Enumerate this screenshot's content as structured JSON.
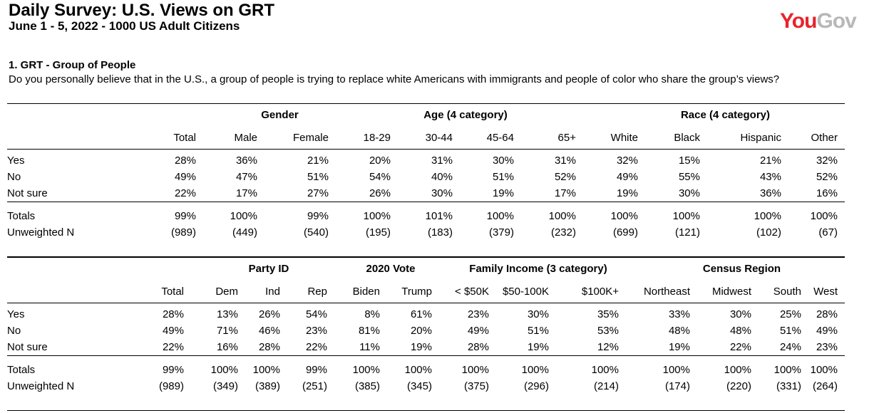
{
  "header": {
    "title": "Daily Survey: U.S. Views on GRT",
    "subtitle": "June 1 - 5, 2022 - 1000 US Adult Citizens",
    "logo_you": "You",
    "logo_gov": "Gov",
    "brand_color": "#e8242c"
  },
  "question": {
    "title": "1. GRT - Group of People",
    "text": "Do you personally believe that in the U.S., a group of people is trying to replace white Americans with immigrants and people of color who share the group’s views?"
  },
  "table1": {
    "groups": [
      {
        "label": "Gender"
      },
      {
        "label": "Age (4 category)"
      },
      {
        "label": "Race (4 category)"
      }
    ],
    "columns": [
      "Total",
      "Male",
      "Female",
      "18-29",
      "30-44",
      "45-64",
      "65+",
      "White",
      "Black",
      "Hispanic",
      "Other"
    ],
    "rows": [
      {
        "label": "Yes",
        "values": [
          "28%",
          "36%",
          "21%",
          "20%",
          "31%",
          "30%",
          "31%",
          "32%",
          "15%",
          "21%",
          "32%"
        ]
      },
      {
        "label": "No",
        "values": [
          "49%",
          "47%",
          "51%",
          "54%",
          "40%",
          "51%",
          "52%",
          "49%",
          "55%",
          "43%",
          "52%"
        ]
      },
      {
        "label": "Not sure",
        "values": [
          "22%",
          "17%",
          "27%",
          "26%",
          "30%",
          "19%",
          "17%",
          "19%",
          "30%",
          "36%",
          "16%"
        ]
      }
    ],
    "totals": {
      "label": "Totals",
      "values": [
        "99%",
        "100%",
        "99%",
        "100%",
        "101%",
        "100%",
        "100%",
        "100%",
        "100%",
        "100%",
        "100%"
      ]
    },
    "unweighted": {
      "label": "Unweighted N",
      "values": [
        "(989)",
        "(449)",
        "(540)",
        "(195)",
        "(183)",
        "(379)",
        "(232)",
        "(699)",
        "(121)",
        "(102)",
        "(67)"
      ]
    }
  },
  "table2": {
    "groups": [
      {
        "label": "Party ID"
      },
      {
        "label": "2020 Vote"
      },
      {
        "label": "Family Income (3 category)"
      },
      {
        "label": "Census Region"
      }
    ],
    "columns": [
      "Total",
      "Dem",
      "Ind",
      "Rep",
      "Biden",
      "Trump",
      "< $50K",
      "$50-100K",
      "$100K+",
      "Northeast",
      "Midwest",
      "South",
      "West"
    ],
    "rows": [
      {
        "label": "Yes",
        "values": [
          "28%",
          "13%",
          "26%",
          "54%",
          "8%",
          "61%",
          "23%",
          "30%",
          "35%",
          "33%",
          "30%",
          "25%",
          "28%"
        ]
      },
      {
        "label": "No",
        "values": [
          "49%",
          "71%",
          "46%",
          "23%",
          "81%",
          "20%",
          "49%",
          "51%",
          "53%",
          "48%",
          "48%",
          "51%",
          "49%"
        ]
      },
      {
        "label": "Not sure",
        "values": [
          "22%",
          "16%",
          "28%",
          "22%",
          "11%",
          "19%",
          "28%",
          "19%",
          "12%",
          "19%",
          "22%",
          "24%",
          "23%"
        ]
      }
    ],
    "totals": {
      "label": "Totals",
      "values": [
        "99%",
        "100%",
        "100%",
        "99%",
        "100%",
        "100%",
        "100%",
        "100%",
        "100%",
        "100%",
        "100%",
        "100%",
        "100%"
      ]
    },
    "unweighted": {
      "label": "Unweighted N",
      "values": [
        "(989)",
        "(349)",
        "(389)",
        "(251)",
        "(385)",
        "(345)",
        "(375)",
        "(296)",
        "(214)",
        "(174)",
        "(220)",
        "(331)",
        "(264)"
      ]
    }
  }
}
